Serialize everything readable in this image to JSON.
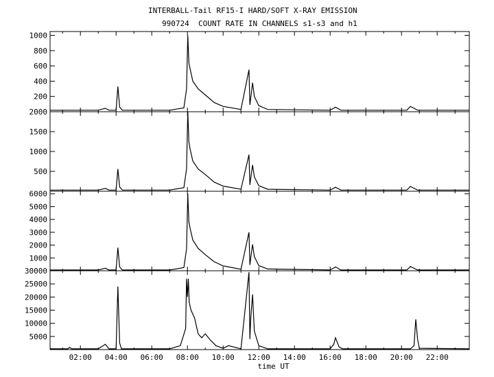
{
  "title": "INTERBALL-Tail RF15-I HARD/SOFT X-RAY EMISSION",
  "subtitle": "990724  COUNT RATE IN CHANNELS s1-s3 and h1",
  "colors": {
    "line": "#000000",
    "background": "#ffffff"
  },
  "chart_data": {
    "type": "line",
    "title": "INTERBALL-Tail RF15-I HARD/SOFT X-RAY EMISSION",
    "subtitle": "990724  COUNT RATE IN CHANNELS s1-s3 and h1",
    "xlabel": "time UT",
    "xlim": [
      0.3,
      23.8
    ],
    "x_ticks": [
      2,
      4,
      6,
      8,
      10,
      12,
      14,
      16,
      18,
      20,
      22
    ],
    "x_tick_labels": [
      "02:00",
      "04:00",
      "06:00",
      "08:00",
      "10:00",
      "12:00",
      "14:00",
      "16:00",
      "18:00",
      "20:00",
      "22:00"
    ],
    "grid": false,
    "panels": [
      {
        "ylim": [
          0,
          1050
        ],
        "y_ticks": [
          200,
          400,
          600,
          800,
          1000
        ],
        "y_tick_labels": [
          "200",
          "400",
          "600",
          "800",
          "1000"
        ],
        "x": [
          0.3,
          3.0,
          3.4,
          3.6,
          4.0,
          4.1,
          4.2,
          4.35,
          5.0,
          7.0,
          7.8,
          7.95,
          8.02,
          8.08,
          8.15,
          8.3,
          8.6,
          9.0,
          9.5,
          10.0,
          11.0,
          11.45,
          11.5,
          11.55,
          11.65,
          11.75,
          12.0,
          12.5,
          16.0,
          16.3,
          16.6,
          20.3,
          20.5,
          20.9,
          23.8
        ],
        "values": [
          20,
          20,
          45,
          20,
          20,
          330,
          60,
          20,
          20,
          20,
          50,
          300,
          1000,
          640,
          560,
          400,
          300,
          220,
          120,
          70,
          30,
          550,
          90,
          180,
          380,
          200,
          80,
          30,
          20,
          60,
          20,
          20,
          70,
          20,
          20
        ]
      },
      {
        "ylim": [
          0,
          2000
        ],
        "y_ticks": [
          500,
          1000,
          1500,
          2000
        ],
        "y_tick_labels": [
          "500",
          "1000",
          "1500",
          "2000"
        ],
        "x": [
          0.3,
          3.0,
          3.4,
          3.6,
          4.0,
          4.1,
          4.2,
          4.35,
          5.0,
          7.0,
          7.8,
          7.95,
          8.02,
          8.08,
          8.15,
          8.3,
          8.6,
          9.0,
          9.5,
          10.0,
          11.0,
          11.45,
          11.5,
          11.55,
          11.65,
          11.75,
          12.0,
          12.5,
          16.0,
          16.3,
          16.6,
          20.3,
          20.5,
          20.9,
          23.8
        ],
        "values": [
          30,
          30,
          70,
          30,
          30,
          560,
          110,
          30,
          30,
          30,
          90,
          560,
          2000,
          1240,
          1060,
          760,
          560,
          420,
          230,
          130,
          50,
          920,
          160,
          330,
          660,
          360,
          140,
          50,
          30,
          100,
          30,
          30,
          120,
          30,
          30
        ]
      },
      {
        "ylim": [
          0,
          6200
        ],
        "y_ticks": [
          1000,
          2000,
          3000,
          4000,
          5000,
          6000
        ],
        "y_tick_labels": [
          "1000",
          "2000",
          "3000",
          "4000",
          "5000",
          "6000"
        ],
        "x": [
          0.3,
          3.0,
          3.4,
          3.6,
          4.0,
          4.1,
          4.2,
          4.35,
          5.0,
          7.0,
          7.8,
          7.95,
          8.02,
          8.08,
          8.15,
          8.3,
          8.6,
          9.0,
          9.5,
          10.0,
          11.0,
          11.45,
          11.5,
          11.55,
          11.65,
          11.75,
          12.0,
          12.5,
          16.0,
          16.3,
          16.6,
          20.3,
          20.5,
          20.9,
          23.8
        ],
        "values": [
          60,
          60,
          200,
          60,
          60,
          1800,
          300,
          60,
          60,
          60,
          250,
          1700,
          6000,
          3800,
          3300,
          2400,
          1750,
          1250,
          700,
          380,
          120,
          3000,
          450,
          1000,
          2050,
          1100,
          400,
          140,
          60,
          300,
          60,
          60,
          330,
          60,
          60
        ]
      },
      {
        "ylim": [
          0,
          30000
        ],
        "y_ticks": [
          5000,
          10000,
          15000,
          20000,
          25000,
          30000
        ],
        "y_tick_labels": [
          "5000",
          "10000",
          "15000",
          "20000",
          "25000",
          "30000"
        ],
        "x": [
          0.3,
          1.3,
          1.4,
          1.5,
          3.0,
          3.4,
          3.6,
          4.0,
          4.1,
          4.2,
          4.3,
          5.0,
          7.0,
          7.6,
          7.9,
          7.95,
          8.0,
          8.05,
          8.1,
          8.2,
          8.4,
          8.6,
          8.8,
          9.0,
          9.3,
          9.6,
          10.0,
          10.3,
          11.0,
          11.45,
          11.5,
          11.55,
          11.65,
          11.75,
          12.0,
          12.5,
          16.0,
          16.2,
          16.3,
          16.5,
          16.7,
          20.5,
          20.7,
          20.8,
          20.9,
          21.0,
          23.8
        ],
        "values": [
          300,
          300,
          900,
          300,
          300,
          2000,
          300,
          300,
          24000,
          2500,
          300,
          300,
          300,
          1500,
          8000,
          27000,
          20000,
          27000,
          18000,
          15000,
          12000,
          6000,
          4500,
          6000,
          3500,
          1500,
          500,
          1500,
          300,
          29500,
          4000,
          12000,
          21000,
          7000,
          1500,
          300,
          300,
          2000,
          4500,
          1000,
          300,
          300,
          1500,
          11500,
          4000,
          500,
          300
        ]
      }
    ]
  }
}
